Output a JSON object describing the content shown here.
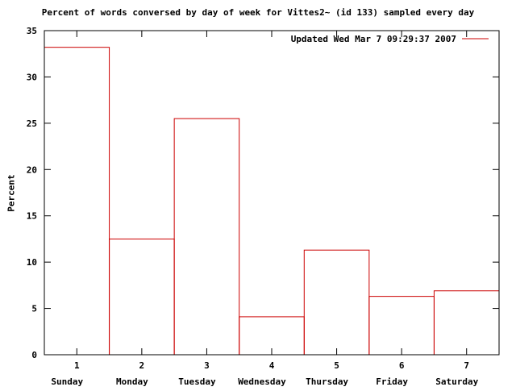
{
  "chart_data": {
    "type": "bar",
    "title": "Percent of words conversed by day of week for Vittes2~ (id 133) sampled every day",
    "ylabel": "Percent",
    "xlabel": "",
    "x": [
      1,
      2,
      3,
      4,
      5,
      6,
      7
    ],
    "categories": [
      "Sunday",
      "Monday",
      "Tuesday",
      "Wednesday",
      "Thursday",
      "Friday",
      "Saturday"
    ],
    "series": [
      {
        "name": "Updated Wed Mar  7 09:29:37 2007",
        "values": [
          33.2,
          12.5,
          25.5,
          4.1,
          11.3,
          6.3,
          6.9
        ],
        "color": "#cc0000"
      }
    ],
    "ylim": [
      0,
      35
    ],
    "yticks": [
      0,
      5,
      10,
      15,
      20,
      25,
      30,
      35
    ],
    "xlim": [
      0.5,
      7.5
    ],
    "grid": false,
    "legend_position": "top-right"
  }
}
